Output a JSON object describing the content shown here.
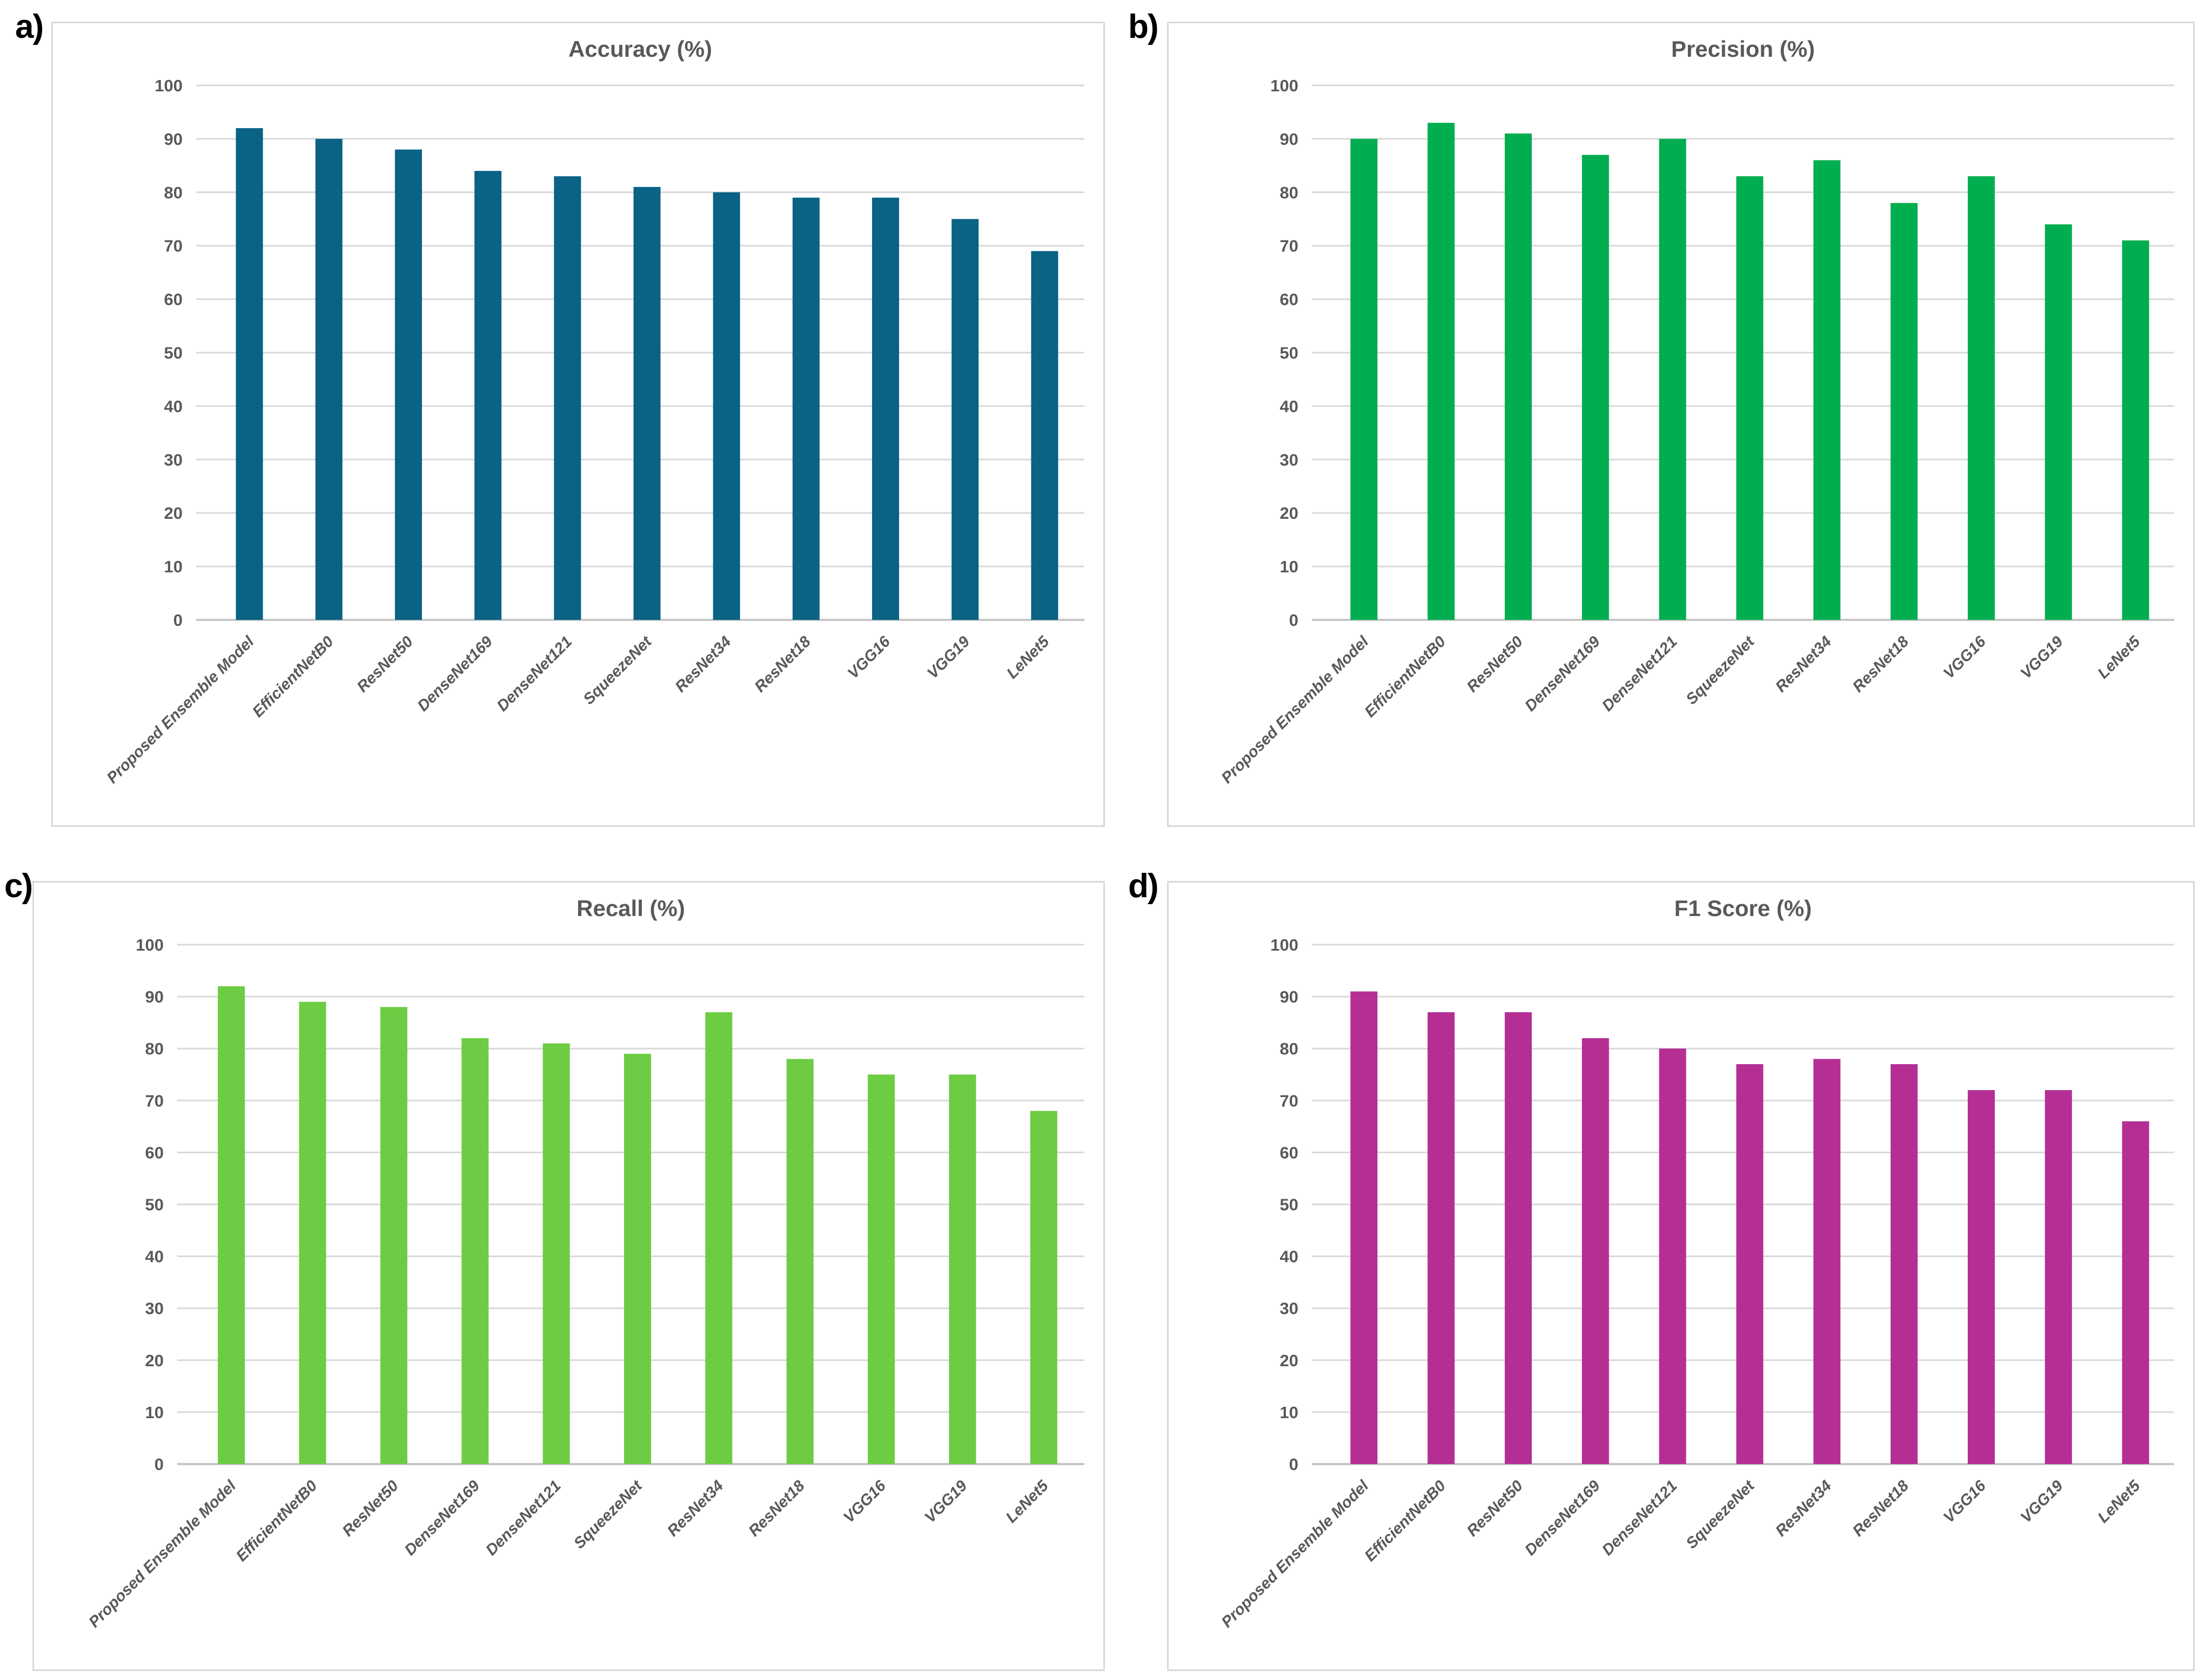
{
  "page": {
    "background": "#ffffff"
  },
  "panels": [
    {
      "label": "a)"
    },
    {
      "label": "b)"
    },
    {
      "label": "c)"
    },
    {
      "label": "d)"
    }
  ],
  "chart_data": [
    {
      "type": "bar",
      "panel_label": "a)",
      "title": "Accuracy (%)",
      "categories": [
        "Proposed Ensemble Model",
        "EfficientNetB0",
        "ResNet50",
        "DenseNet169",
        "DenseNet121",
        "SqueezeNet",
        "ResNet34",
        "ResNet18",
        "VGG16",
        "VGG19",
        "LeNet5"
      ],
      "values": [
        92,
        90,
        88,
        84,
        83,
        81,
        80,
        79,
        79,
        75,
        69
      ],
      "bar_color": "#0a6285",
      "xlabel": "",
      "ylabel": "",
      "ylim": [
        0,
        100
      ],
      "ytick_step": 10,
      "grid": true,
      "legend": "none"
    },
    {
      "type": "bar",
      "panel_label": "b)",
      "title": "Precision (%)",
      "categories": [
        "Proposed Ensemble Model",
        "EfficientNetB0",
        "ResNet50",
        "DenseNet169",
        "DenseNet121",
        "SqueezeNet",
        "ResNet34",
        "ResNet18",
        "VGG16",
        "VGG19",
        "LeNet5"
      ],
      "values": [
        90,
        93,
        91,
        87,
        90,
        83,
        86,
        78,
        83,
        74,
        71
      ],
      "bar_color": "#00ad4f",
      "xlabel": "",
      "ylabel": "",
      "ylim": [
        0,
        100
      ],
      "ytick_step": 10,
      "grid": true,
      "legend": "none"
    },
    {
      "type": "bar",
      "panel_label": "c)",
      "title": "Recall (%)",
      "categories": [
        "Proposed Ensemble Model",
        "EfficientNetB0",
        "ResNet50",
        "DenseNet169",
        "DenseNet121",
        "SqueezeNet",
        "ResNet34",
        "ResNet18",
        "VGG16",
        "VGG19",
        "LeNet5"
      ],
      "values": [
        92,
        89,
        88,
        82,
        81,
        79,
        87,
        78,
        75,
        75,
        68
      ],
      "bar_color": "#6dcc43",
      "xlabel": "",
      "ylabel": "",
      "ylim": [
        0,
        100
      ],
      "ytick_step": 10,
      "grid": true,
      "legend": "none"
    },
    {
      "type": "bar",
      "panel_label": "d)",
      "title": "F1 Score (%)",
      "categories": [
        "Proposed Ensemble Model",
        "EfficientNetB0",
        "ResNet50",
        "DenseNet169",
        "DenseNet121",
        "SqueezeNet",
        "ResNet34",
        "ResNet18",
        "VGG16",
        "VGG19",
        "LeNet5"
      ],
      "values": [
        91,
        87,
        87,
        82,
        80,
        77,
        78,
        77,
        72,
        72,
        66
      ],
      "bar_color": "#b42e94",
      "xlabel": "",
      "ylabel": "",
      "ylim": [
        0,
        100
      ],
      "ytick_step": 10,
      "grid": true,
      "legend": "none"
    }
  ],
  "style": {
    "grid_color": "#d9d9d9",
    "axis_color": "#c6c6c6",
    "tick_text_color": "#595959",
    "title_text_color": "#595959",
    "panel_border_color": "#d9d9d9"
  }
}
